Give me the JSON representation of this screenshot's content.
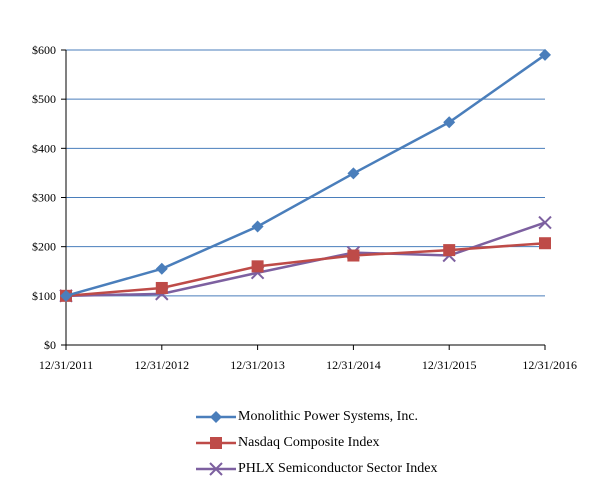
{
  "chart_data": {
    "type": "line",
    "title": "",
    "xlabel": "",
    "ylabel": "",
    "categories": [
      "12/31/2011",
      "12/31/2012",
      "12/31/2013",
      "12/31/2014",
      "12/31/2015",
      "12/31/2016"
    ],
    "ylim": [
      0,
      600
    ],
    "yticks": [
      0,
      100,
      200,
      300,
      400,
      500,
      600
    ],
    "ytick_labels": [
      "$0",
      "$100",
      "$200",
      "$300",
      "$400",
      "$500",
      "$600"
    ],
    "grid": "horizontal",
    "legend_position": "bottom",
    "series": [
      {
        "name": "Monolithic Power Systems, Inc.",
        "color": "#4a7ebb",
        "marker": "diamond",
        "values": [
          100,
          155,
          241,
          349,
          453,
          590
        ]
      },
      {
        "name": "Nasdaq Composite Index",
        "color": "#be4b48",
        "marker": "square",
        "values": [
          100,
          116,
          160,
          182,
          193,
          207
        ]
      },
      {
        "name": "PHLX Semiconductor Sector Index",
        "color": "#7d60a0",
        "marker": "x",
        "values": [
          100,
          104,
          147,
          188,
          182,
          249
        ]
      }
    ]
  }
}
